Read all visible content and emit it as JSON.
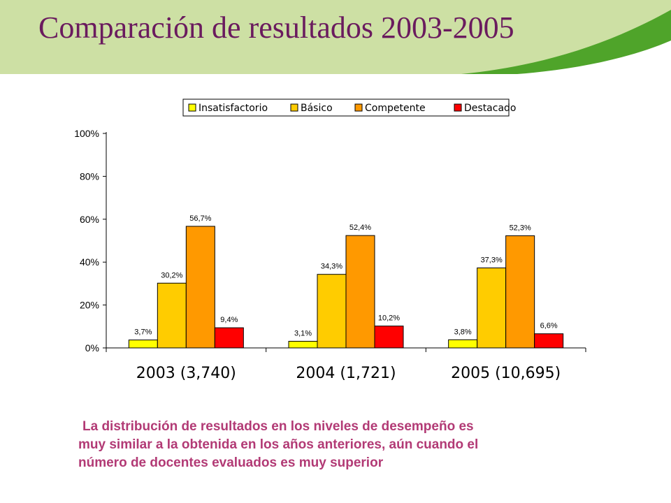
{
  "header": {
    "title": "Comparación de resultados 2003-2005",
    "band_color": "#cde0a4",
    "title_color": "#6a1b5e",
    "swoosh_color": "#4fa42a"
  },
  "chart_data": {
    "type": "bar",
    "title": "",
    "xlabel": "",
    "ylabel": "",
    "categories": [
      "2003 (3,740)",
      "2004 (1,721)",
      "2005 (10,695)"
    ],
    "series": [
      {
        "name": "Insatisfactorio",
        "color": "#ffff00",
        "values": [
          3.7,
          3.1,
          3.8
        ],
        "labels": [
          "3,7%",
          "3,1%",
          "3,8%"
        ]
      },
      {
        "name": "Básico",
        "color": "#ffcc00",
        "values": [
          30.2,
          34.3,
          37.3
        ],
        "labels": [
          "30,2%",
          "34,3%",
          "37,3%"
        ]
      },
      {
        "name": "Competente",
        "color": "#ff9900",
        "values": [
          56.7,
          52.4,
          52.3
        ],
        "labels": [
          "56,7%",
          "52,4%",
          "52,3%"
        ]
      },
      {
        "name": "Destacado",
        "color": "#ff0000",
        "values": [
          9.4,
          10.2,
          6.6
        ],
        "labels": [
          "9,4%",
          "10,2%",
          "6,6%"
        ]
      }
    ],
    "ylim": [
      0,
      100
    ],
    "yticks": [
      "0%",
      "20%",
      "40%",
      "60%",
      "80%",
      "100%"
    ],
    "grid": false,
    "legend": "top"
  },
  "caption": {
    "lines": [
      "La distribución de resultados en los niveles de desempeño es",
      "muy similar a la obtenida en los años anteriores, aún cuando el",
      "número de docentes evaluados es muy superior"
    ],
    "color": "#b23a75"
  }
}
